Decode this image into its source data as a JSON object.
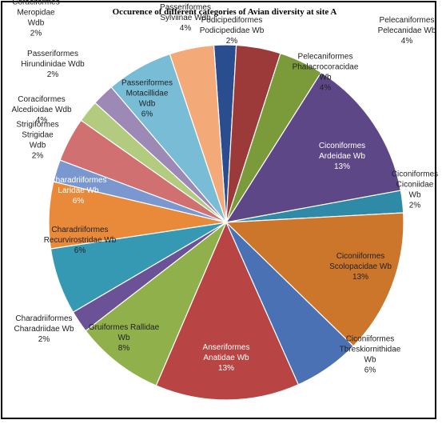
{
  "chart_data": {
    "type": "pie",
    "title": "Occurence of different categories of Avian diversity at site A",
    "start_angle_deg": -4,
    "slices": [
      {
        "lines": [
          "Podicipediformes",
          "Podicipedidae Wb",
          "2%"
        ],
        "value": 2,
        "color": "#2a4d8f",
        "text_color": "#222222"
      },
      {
        "lines": [
          "Pelecaniformes",
          "Pelecanidae Wb",
          "4%"
        ],
        "value": 4,
        "color": "#9c3a3a",
        "text_color": "#222222"
      },
      {
        "lines": [
          "Pelecaniformes",
          "Phalacrocoracidae",
          "Wb",
          "4%"
        ],
        "value": 4,
        "color": "#7b9a3a",
        "text_color": "#222222"
      },
      {
        "lines": [
          "Ciconiformes",
          "Ardeidae Wb",
          "13%"
        ],
        "value": 13,
        "color": "#5d4787",
        "text_color": "#ffffff"
      },
      {
        "lines": [
          "Ciconiformes",
          "Ciconiidae",
          "Wb",
          "2%"
        ],
        "value": 2,
        "color": "#2e8aa6",
        "text_color": "#222222"
      },
      {
        "lines": [
          "Ciconiiformes",
          "Scolopacidae Wb",
          "13%"
        ],
        "value": 13,
        "color": "#cc762c",
        "text_color": "#222222"
      },
      {
        "lines": [
          "Ciconiiformes",
          "Tbreskiornithidae",
          "Wb",
          "6%"
        ],
        "value": 6,
        "color": "#4a71b3",
        "text_color": "#222222"
      },
      {
        "lines": [
          "Anseriformes",
          "Anatidae Wb",
          "13%"
        ],
        "value": 13,
        "color": "#b94444",
        "text_color": "#ffffff"
      },
      {
        "lines": [
          "Gruiformes Rallidae",
          "Wb",
          "8%"
        ],
        "value": 8,
        "color": "#8fb04a",
        "text_color": "#222222"
      },
      {
        "lines": [
          "Charadriiformes",
          "Charadriidae Wb",
          "2%"
        ],
        "value": 2,
        "color": "#6b5296",
        "text_color": "#222222"
      },
      {
        "lines": [
          "Charadriiformes",
          "Recurvirostridae Wb",
          "6%"
        ],
        "value": 6,
        "color": "#3599b4",
        "text_color": "#222222"
      },
      {
        "lines": [
          "Charadriiformes",
          "Laridae Wb",
          "6%"
        ],
        "value": 6,
        "color": "#e88a3a",
        "text_color": "#ffffff"
      },
      {
        "lines": [
          "Strigiformes",
          "Strigidae",
          "Wdb",
          "2%"
        ],
        "value": 2,
        "color": "#7a98cf",
        "text_color": "#222222"
      },
      {
        "lines": [
          "Coraciformes",
          "Alcedioidae Wdb",
          "4%"
        ],
        "value": 4,
        "color": "#d07070",
        "text_color": "#222222"
      },
      {
        "lines": [
          "Passeriformes",
          "Hirundinidae Wdb",
          "2%"
        ],
        "value": 2,
        "color": "#b2cb7f",
        "text_color": "#222222"
      },
      {
        "lines": [
          "Coraciformes",
          "Meropidae",
          "Wdb",
          "2%"
        ],
        "value": 2,
        "color": "#9d89b6",
        "text_color": "#222222"
      },
      {
        "lines": [
          "Passeriformes",
          "Motacillidae",
          "Wdb",
          "6%"
        ],
        "value": 6,
        "color": "#79bcd6",
        "text_color": "#222222"
      },
      {
        "lines": [
          "Passeriformes",
          "Sylviinae Wdb",
          "4%"
        ],
        "value": 4,
        "color": "#f4aa78",
        "text_color": "#222222"
      }
    ]
  }
}
